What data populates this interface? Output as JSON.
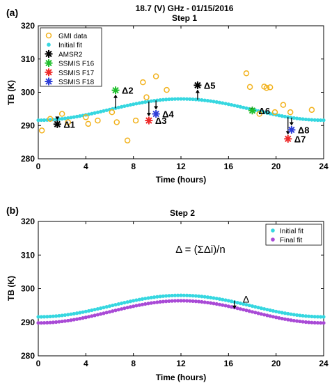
{
  "chart_data": [
    {
      "type": "scatter",
      "panel_label": "(a)",
      "title": "18.7 (V) GHz - 01/15/2016",
      "subtitle": "Step 1",
      "xlabel": "Time (hours)",
      "ylabel": "TB (K)",
      "xlim": [
        0,
        24
      ],
      "ylim": [
        280,
        320
      ],
      "xticks": [
        "0",
        "4",
        "8",
        "12",
        "16",
        "20",
        "24"
      ],
      "yticks": [
        "280",
        "290",
        "300",
        "310",
        "320"
      ],
      "grid": false,
      "legend_position": "top-left",
      "legend": [
        {
          "name": "GMI data",
          "marker": "circle",
          "color": "#f2b21d"
        },
        {
          "name": "Initial fit",
          "marker": "dot",
          "color": "#36d7e0"
        },
        {
          "name": "AMSR2",
          "marker": "asterisk",
          "color": "#000000"
        },
        {
          "name": "SSMIS F16",
          "marker": "asterisk",
          "color": "#1fbf2c"
        },
        {
          "name": "SSMIS F17",
          "marker": "asterisk",
          "color": "#ee2a2a"
        },
        {
          "name": "SSMIS F18",
          "marker": "asterisk",
          "color": "#2e3ed8"
        }
      ],
      "series": [
        {
          "name": "GMI data",
          "color": "#f2b21d",
          "x": [
            0.3,
            1.0,
            2.0,
            2.5,
            4.0,
            4.2,
            5.0,
            6.2,
            6.6,
            7.5,
            8.2,
            8.8,
            9.1,
            9.9,
            10.8,
            17.5,
            17.8,
            18.6,
            19.0,
            19.2,
            19.5,
            19.9,
            20.6,
            21.2,
            23.0
          ],
          "y": [
            288.5,
            292.0,
            293.5,
            291.0,
            292.5,
            290.5,
            291.5,
            294.0,
            291.0,
            285.5,
            291.5,
            303.0,
            298.5,
            304.8,
            300.7,
            305.7,
            301.6,
            293.5,
            301.7,
            301.3,
            301.5,
            294.0,
            296.2,
            294.0,
            294.7
          ]
        },
        {
          "name": "AMSR2",
          "color": "#000000",
          "x": [
            1.6,
            13.4
          ],
          "y": [
            290.4,
            302.1
          ]
        },
        {
          "name": "SSMIS F16",
          "color": "#1fbf2c",
          "x": [
            6.5,
            18.0
          ],
          "y": [
            300.6,
            294.5
          ]
        },
        {
          "name": "SSMIS F17",
          "color": "#ee2a2a",
          "x": [
            9.3,
            21.0
          ],
          "y": [
            291.5,
            286.0
          ]
        },
        {
          "name": "SSMIS F18",
          "color": "#2e3ed8",
          "x": [
            9.9,
            21.3
          ],
          "y": [
            293.5,
            288.7
          ]
        }
      ],
      "fit": {
        "name": "Initial fit",
        "color": "#36d7e0",
        "mean": 294.8,
        "amplitude": 3.2,
        "peak_hour": 12
      },
      "annotations": [
        {
          "text": "Δ1",
          "x": 1.6,
          "y": 290.4
        },
        {
          "text": "Δ2",
          "x": 6.5,
          "y": 300.6
        },
        {
          "text": "Δ3",
          "x": 9.3,
          "y": 291.5
        },
        {
          "text": "Δ4",
          "x": 9.9,
          "y": 293.5
        },
        {
          "text": "Δ5",
          "x": 13.4,
          "y": 302.1
        },
        {
          "text": "Δ6",
          "x": 18.0,
          "y": 294.5
        },
        {
          "text": "Δ7",
          "x": 21.0,
          "y": 286.0
        },
        {
          "text": "Δ8",
          "x": 21.3,
          "y": 288.7
        }
      ]
    },
    {
      "type": "scatter",
      "panel_label": "(b)",
      "title": "Step 2",
      "xlabel": "Time (hours)",
      "ylabel": "TB (K)",
      "xlim": [
        0,
        24
      ],
      "ylim": [
        280,
        320
      ],
      "xticks": [
        "0",
        "4",
        "8",
        "12",
        "16",
        "20",
        "24"
      ],
      "yticks": [
        "280",
        "290",
        "300",
        "310",
        "320"
      ],
      "grid": false,
      "legend_position": "top-right",
      "legend": [
        {
          "name": "Initial fit",
          "marker": "dot",
          "color": "#36d7e0"
        },
        {
          "name": "Final fit",
          "marker": "dot",
          "color": "#a94ad6"
        }
      ],
      "series": [
        {
          "name": "Initial fit",
          "color": "#36d7e0",
          "mean": 294.8,
          "amplitude": 3.2,
          "peak_hour": 12
        },
        {
          "name": "Final fit",
          "color": "#a94ad6",
          "mean": 293.1,
          "amplitude": 3.3,
          "peak_hour": 12
        }
      ],
      "equation": "Δ = (ΣΔi)/n",
      "delta_label": "Δ",
      "delta_at_hour": 16.5
    }
  ]
}
